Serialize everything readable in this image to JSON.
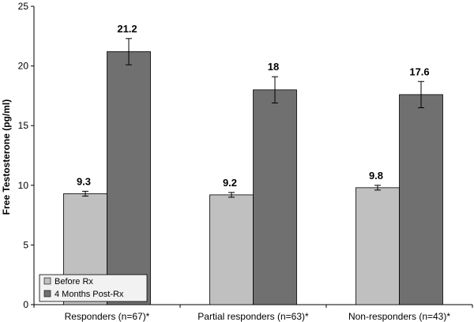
{
  "chart_data": {
    "type": "bar",
    "title": "",
    "xlabel": "",
    "ylabel": "Free Testosterone (pg/ml)",
    "ylim": [
      0,
      25
    ],
    "yticks": [
      0,
      5,
      10,
      15,
      20,
      25
    ],
    "grid": false,
    "legend_position": "bottom-left",
    "categories": [
      "Responders (n=67)*",
      "Partial responders (n=63)*",
      "Non-responders (n=43)*"
    ],
    "series": [
      {
        "name": "Before Rx",
        "color": "#c0c0c0",
        "values": [
          9.3,
          9.2,
          9.8
        ],
        "errors": [
          0.2,
          0.2,
          0.2
        ],
        "labels": [
          "9.3",
          "9.2",
          "9.8"
        ]
      },
      {
        "name": "4 Months Post-Rx",
        "color": "#707070",
        "values": [
          21.2,
          18,
          17.6
        ],
        "errors": [
          1.1,
          1.1,
          1.1
        ],
        "labels": [
          "21.2",
          "18",
          "17.6"
        ]
      }
    ]
  }
}
